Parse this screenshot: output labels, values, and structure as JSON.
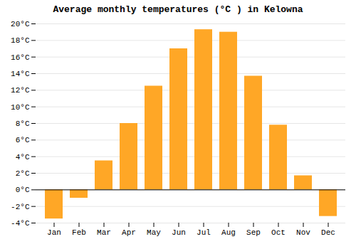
{
  "chart_data": {
    "type": "bar",
    "title": "Average monthly temperatures (°C ) in Kelowna",
    "categories": [
      "Jan",
      "Feb",
      "Mar",
      "Apr",
      "May",
      "Jun",
      "Jul",
      "Aug",
      "Sep",
      "Oct",
      "Nov",
      "Dec"
    ],
    "values": [
      -3.5,
      -1.0,
      3.5,
      8.0,
      12.5,
      17.0,
      19.3,
      19.0,
      13.7,
      7.8,
      1.7,
      -3.2
    ],
    "color": "#FFA726",
    "ylim": [
      -4,
      20
    ],
    "yticks": [
      {
        "value": -4,
        "label": "-4°C"
      },
      {
        "value": -2,
        "label": "-2°C"
      },
      {
        "value": 0,
        "label": "0°C"
      },
      {
        "value": 2,
        "label": "2°C"
      },
      {
        "value": 4,
        "label": "4°C"
      },
      {
        "value": 6,
        "label": "6°C"
      },
      {
        "value": 8,
        "label": "8°C"
      },
      {
        "value": 10,
        "label": "10°C"
      },
      {
        "value": 12,
        "label": "12°C"
      },
      {
        "value": 14,
        "label": "14°C"
      },
      {
        "value": 16,
        "label": "16°C"
      },
      {
        "value": 18,
        "label": "18°C"
      },
      {
        "value": 20,
        "label": "20°C"
      }
    ],
    "grid": true
  }
}
